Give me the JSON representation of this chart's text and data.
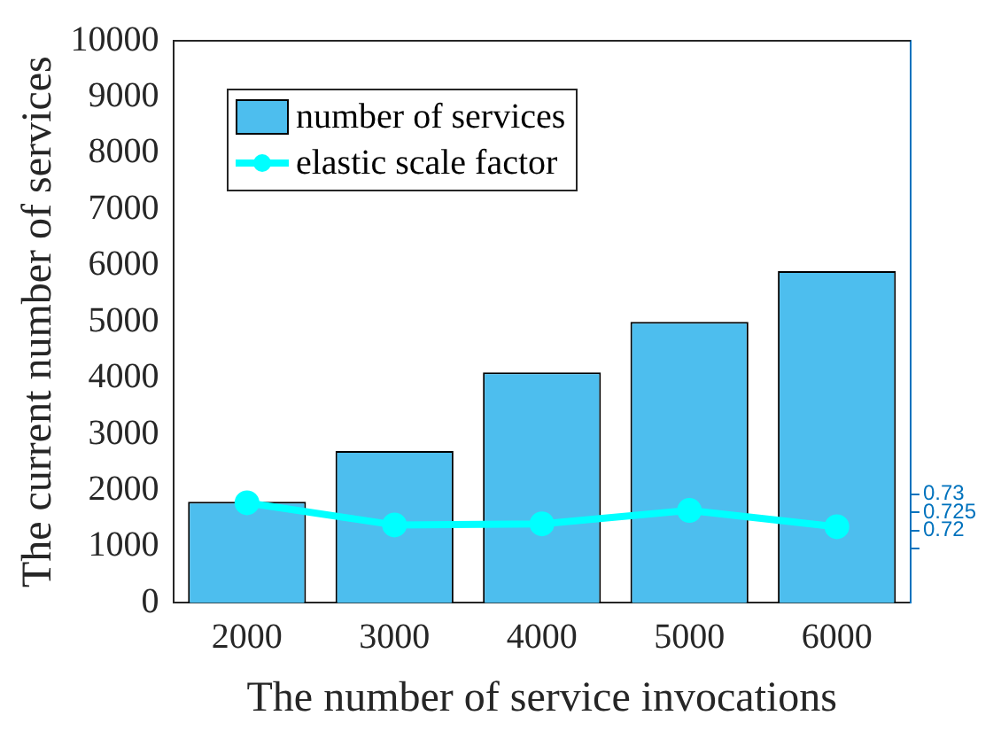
{
  "chart_data": {
    "type": "bar",
    "xlabel": "The number of service invocations",
    "ylabel": "The current number of services",
    "categories": [
      "2000",
      "3000",
      "4000",
      "5000",
      "6000"
    ],
    "series": [
      {
        "name": "number of services",
        "color": "#4dbeee",
        "values": [
          1800,
          2700,
          4100,
          5000,
          5900
        ]
      },
      {
        "name": "elastic scale factor",
        "type": "line",
        "axis": "y2",
        "color": "#00ffff",
        "marker": "circle",
        "values": [
          0.7276,
          0.7215,
          0.7218,
          0.7255,
          0.721
        ]
      }
    ],
    "ylim": [
      0,
      10000
    ],
    "yticks": [
      0,
      1000,
      2000,
      3000,
      4000,
      5000,
      6000,
      7000,
      8000,
      9000,
      10000
    ],
    "y2lim": [
      0.7,
      0.855
    ],
    "y2ticks": [
      {
        "value": 0.715,
        "label": null
      },
      0.72,
      0.725,
      0.73
    ],
    "legend": "top left",
    "grid": false
  }
}
